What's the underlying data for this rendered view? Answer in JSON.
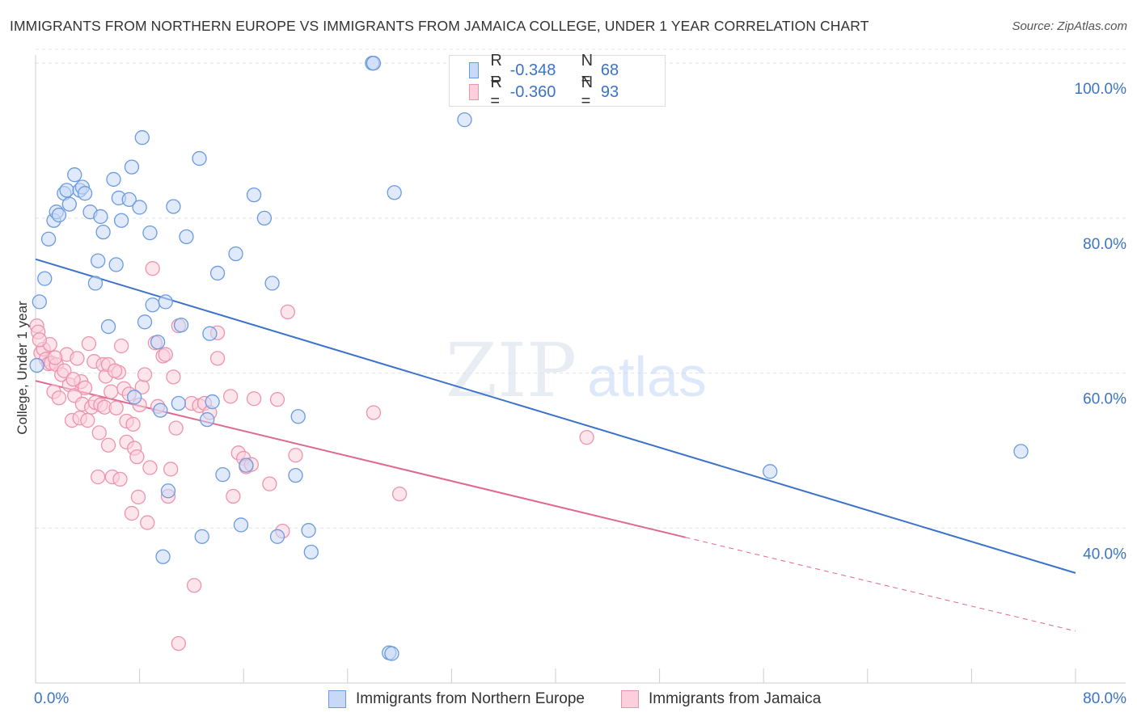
{
  "title": "IMMIGRANTS FROM NORTHERN EUROPE VS IMMIGRANTS FROM JAMAICA COLLEGE, UNDER 1 YEAR CORRELATION CHART",
  "source": "Source: ZipAtlas.com",
  "watermark": {
    "zip": "ZIP",
    "atlas": "atlas"
  },
  "legend": {
    "r_label": "R =",
    "n_label": "N =",
    "rows": [
      {
        "r": "-0.348",
        "n": "68"
      },
      {
        "r": "-0.360",
        "n": "93"
      }
    ]
  },
  "chart_data": {
    "type": "scatter",
    "title": "IMMIGRANTS FROM NORTHERN EUROPE VS IMMIGRANTS FROM JAMAICA COLLEGE, UNDER 1 YEAR CORRELATION CHART",
    "xlabel": "",
    "ylabel": "College, Under 1 year",
    "xlim": [
      0,
      80
    ],
    "ylim": [
      20,
      102
    ],
    "x_tick_labels": [
      "0.0%",
      "80.0%"
    ],
    "y_tick_labels": [
      "40.0%",
      "60.0%",
      "80.0%",
      "100.0%"
    ],
    "y_ticks": [
      40,
      60,
      80,
      100
    ],
    "colors": {
      "blue": "#3b73c8",
      "blue_fill": "#c7d9f7",
      "pink": "#e0678f",
      "pink_fill": "#fbd0dc",
      "axis_text": "#3b73c8"
    },
    "series": [
      {
        "name": "Immigrants from Northern Europe",
        "color": "#3b73c8",
        "trend": {
          "x0": 0,
          "y0": 74.7,
          "x1": 80,
          "y1": 34.2
        },
        "points": [
          [
            0.1,
            61
          ],
          [
            0.3,
            69.2
          ],
          [
            0.7,
            72.2
          ],
          [
            1,
            77.3
          ],
          [
            1.4,
            79.7
          ],
          [
            1.6,
            80.8
          ],
          [
            1.8,
            80.4
          ],
          [
            2.2,
            83.2
          ],
          [
            2.4,
            83.6
          ],
          [
            2.6,
            81.8
          ],
          [
            3,
            85.6
          ],
          [
            3.4,
            83.6
          ],
          [
            3.6,
            84
          ],
          [
            3.8,
            83.2
          ],
          [
            4.2,
            80.8
          ],
          [
            4.6,
            71.6
          ],
          [
            4.8,
            74.5
          ],
          [
            5,
            80.2
          ],
          [
            5.2,
            78.2
          ],
          [
            5.6,
            66
          ],
          [
            6,
            85
          ],
          [
            6.2,
            74
          ],
          [
            6.4,
            82.6
          ],
          [
            6.6,
            79.7
          ],
          [
            7.2,
            82.4
          ],
          [
            7.4,
            86.6
          ],
          [
            7.6,
            56.9
          ],
          [
            8,
            81.4
          ],
          [
            8.2,
            90.4
          ],
          [
            8.4,
            66.6
          ],
          [
            8.8,
            78.1
          ],
          [
            9,
            68.8
          ],
          [
            9.4,
            64
          ],
          [
            9.6,
            55.2
          ],
          [
            9.8,
            36.3
          ],
          [
            10,
            69.2
          ],
          [
            10.2,
            44.8
          ],
          [
            10.6,
            81.5
          ],
          [
            11,
            56.1
          ],
          [
            11.2,
            66.2
          ],
          [
            11.6,
            77.6
          ],
          [
            12.6,
            87.7
          ],
          [
            12.8,
            38.9
          ],
          [
            13.2,
            54
          ],
          [
            13.4,
            65.1
          ],
          [
            13.6,
            56.3
          ],
          [
            14,
            72.9
          ],
          [
            14.4,
            46.9
          ],
          [
            15.4,
            75.4
          ],
          [
            15.8,
            40.4
          ],
          [
            16.2,
            48.1
          ],
          [
            16.8,
            83
          ],
          [
            17.6,
            80
          ],
          [
            18.2,
            71.6
          ],
          [
            18.6,
            38.9
          ],
          [
            20,
            46.8
          ],
          [
            20.2,
            54.4
          ],
          [
            21,
            39.7
          ],
          [
            21.2,
            36.9
          ],
          [
            25.9,
            100
          ],
          [
            26,
            100
          ],
          [
            27.2,
            23.9
          ],
          [
            27.4,
            23.8
          ],
          [
            27.6,
            83.3
          ],
          [
            33,
            92.7
          ],
          [
            56.5,
            47.3
          ],
          [
            75.8,
            49.9
          ]
        ]
      },
      {
        "name": "Immigrants from Jamaica",
        "color": "#e0678f",
        "trend": {
          "x0": 0,
          "y0": 59,
          "x1": 50,
          "y1": 38.8,
          "dash_x1": 80,
          "dash_y1": 26.7
        },
        "points": [
          [
            0.1,
            66.1
          ],
          [
            0.2,
            65.3
          ],
          [
            0.4,
            62.6
          ],
          [
            0.6,
            63.1
          ],
          [
            0.8,
            61.8
          ],
          [
            1,
            61.2
          ],
          [
            1.1,
            63.7
          ],
          [
            1.2,
            61.3
          ],
          [
            1.4,
            57.6
          ],
          [
            1.6,
            61.1
          ],
          [
            1.8,
            56.8
          ],
          [
            2,
            59.8
          ],
          [
            2.2,
            60.3
          ],
          [
            2.4,
            62.4
          ],
          [
            2.6,
            58.5
          ],
          [
            2.8,
            53.9
          ],
          [
            3,
            57.1
          ],
          [
            3.2,
            61.9
          ],
          [
            3.4,
            54.2
          ],
          [
            3.5,
            58.9
          ],
          [
            3.6,
            56
          ],
          [
            3.8,
            58.1
          ],
          [
            4,
            53.9
          ],
          [
            4.1,
            63.8
          ],
          [
            4.3,
            55.6
          ],
          [
            4.5,
            61.5
          ],
          [
            4.6,
            56.2
          ],
          [
            4.8,
            46.6
          ],
          [
            4.9,
            52.3
          ],
          [
            5,
            55.9
          ],
          [
            5.2,
            61.1
          ],
          [
            5.3,
            55.6
          ],
          [
            5.4,
            59.6
          ],
          [
            5.6,
            61.1
          ],
          [
            5.6,
            50.7
          ],
          [
            5.8,
            57.6
          ],
          [
            5.9,
            46.6
          ],
          [
            6.2,
            55.5
          ],
          [
            6.4,
            60.1
          ],
          [
            6.5,
            46.3
          ],
          [
            6.6,
            63.5
          ],
          [
            6.8,
            58
          ],
          [
            7,
            53.8
          ],
          [
            7,
            51.1
          ],
          [
            7.2,
            57.3
          ],
          [
            7.4,
            41.9
          ],
          [
            7.5,
            53.4
          ],
          [
            7.6,
            50.3
          ],
          [
            7.8,
            49.2
          ],
          [
            7.9,
            44
          ],
          [
            8,
            55.9
          ],
          [
            8.2,
            58.2
          ],
          [
            8.4,
            59.8
          ],
          [
            8.6,
            40.7
          ],
          [
            8.8,
            47.8
          ],
          [
            9,
            73.5
          ],
          [
            9.2,
            63.9
          ],
          [
            9.4,
            55.7
          ],
          [
            9.8,
            62.2
          ],
          [
            10,
            62.4
          ],
          [
            10.2,
            44.1
          ],
          [
            10.4,
            47.6
          ],
          [
            10.6,
            59.5
          ],
          [
            10.8,
            52.9
          ],
          [
            11,
            66.1
          ],
          [
            11,
            25.1
          ],
          [
            12,
            56.1
          ],
          [
            12.2,
            32.6
          ],
          [
            12.6,
            55.8
          ],
          [
            13,
            56.1
          ],
          [
            13.4,
            54.9
          ],
          [
            14,
            65.2
          ],
          [
            14,
            61.9
          ],
          [
            15,
            57
          ],
          [
            15.2,
            44.1
          ],
          [
            15.6,
            49.7
          ],
          [
            16,
            49
          ],
          [
            16.2,
            47.9
          ],
          [
            16.6,
            48.2
          ],
          [
            16.8,
            56.7
          ],
          [
            18,
            45.7
          ],
          [
            18.6,
            56.6
          ],
          [
            19,
            39.6
          ],
          [
            19.4,
            67.9
          ],
          [
            20,
            49.4
          ],
          [
            26,
            54.9
          ],
          [
            28,
            44.4
          ],
          [
            42.4,
            51.7
          ],
          [
            0.3,
            64.3
          ],
          [
            1.5,
            62
          ],
          [
            2.9,
            59.2
          ],
          [
            6.1,
            60.3
          ]
        ]
      }
    ]
  }
}
